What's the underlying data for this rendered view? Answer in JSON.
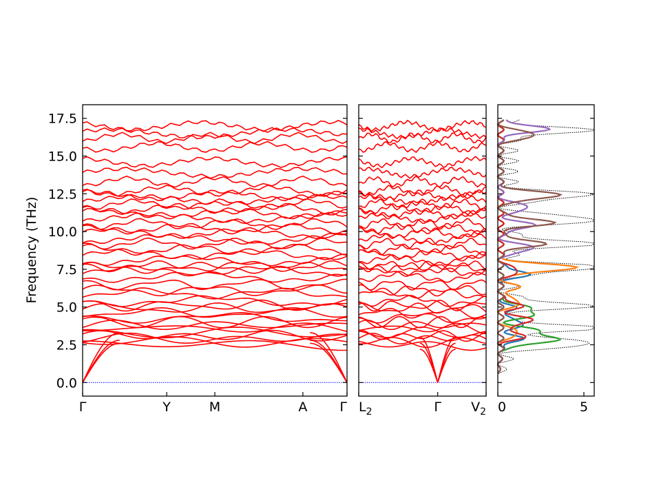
{
  "chart_data": {
    "type": "line",
    "ylabel": "Frequency (THz)",
    "ylim": [
      -0.9,
      18.4
    ],
    "yticks": [
      "0.0",
      "2.5",
      "5.0",
      "7.5",
      "10.0",
      "12.5",
      "15.0",
      "17.5"
    ],
    "grid": false,
    "colors": {
      "bands": "#ff0000",
      "zero_line": "#0000ff",
      "dos_total": "#000000"
    },
    "band_panels": [
      {
        "labels": [
          "Γ",
          "Y",
          "M",
          "A",
          "Γ"
        ],
        "label_positions": [
          0.0,
          0.318,
          0.5,
          0.833,
          1.0
        ],
        "acoustic_bands": [
          [
            0,
            3.3
          ],
          [
            0,
            2.8
          ],
          [
            0,
            2.6
          ]
        ]
      },
      {
        "labels": [
          "L2",
          "Γ",
          "V2"
        ],
        "label_positions": [
          0.0,
          0.62,
          1.0
        ],
        "acoustic_bands": [
          [
            0,
            3.0
          ],
          [
            0,
            2.6
          ],
          [
            0,
            2.2
          ]
        ]
      }
    ],
    "optical_band_levels": [
      2.5,
      2.7,
      2.9,
      3.1,
      3.3,
      3.6,
      3.8,
      4.0,
      4.3,
      4.6,
      4.9,
      5.1,
      5.4,
      5.9,
      6.1,
      6.5,
      7.0,
      7.4,
      7.6,
      7.7,
      8.1,
      8.5,
      8.8,
      9.2,
      9.5,
      9.9,
      10.2,
      10.5,
      10.9,
      11.2,
      11.5,
      11.8,
      12.1,
      12.4,
      12.7,
      13.3,
      13.9,
      14.6,
      15.6,
      16.2,
      16.5,
      17.0
    ],
    "dos_panel": {
      "xticks": [
        "0",
        "5"
      ],
      "xlim": [
        0,
        5.6
      ],
      "series": [
        {
          "color": "#1f77b4",
          "peaks": [
            [
              2.9,
              1.2
            ],
            [
              3.9,
              1.4
            ],
            [
              4.9,
              0.8
            ],
            [
              7.2,
              1.6
            ]
          ]
        },
        {
          "color": "#ff7f0e",
          "peaks": [
            [
              3.3,
              1.1
            ],
            [
              5.3,
              1.2
            ],
            [
              6.3,
              1.0
            ],
            [
              7.6,
              4.4
            ]
          ]
        },
        {
          "color": "#2ca02c",
          "peaks": [
            [
              2.8,
              3.2
            ],
            [
              3.4,
              2.2
            ],
            [
              4.5,
              1.8
            ],
            [
              5.0,
              1.3
            ]
          ]
        },
        {
          "color": "#d62728",
          "peaks": [
            [
              3.1,
              1.4
            ],
            [
              4.1,
              1.9
            ],
            [
              5.1,
              1.2
            ],
            [
              7.4,
              1.1
            ]
          ]
        },
        {
          "color": "#9467bd",
          "peaks": [
            [
              8.9,
              2.0
            ],
            [
              10.4,
              1.9
            ],
            [
              11.6,
              1.7
            ],
            [
              16.8,
              2.7
            ]
          ]
        },
        {
          "color": "#8c564b",
          "peaks": [
            [
              9.2,
              2.5
            ],
            [
              10.6,
              3.0
            ],
            [
              12.4,
              3.5
            ],
            [
              16.4,
              2.1
            ]
          ]
        }
      ],
      "total_peaks": [
        [
          2.6,
          5.3
        ],
        [
          3.6,
          5.1
        ],
        [
          5.1,
          4.6
        ],
        [
          7.6,
          5.6
        ],
        [
          9.2,
          4.9
        ],
        [
          10.8,
          5.5
        ],
        [
          12.4,
          5.0
        ],
        [
          16.7,
          4.5
        ]
      ]
    }
  }
}
